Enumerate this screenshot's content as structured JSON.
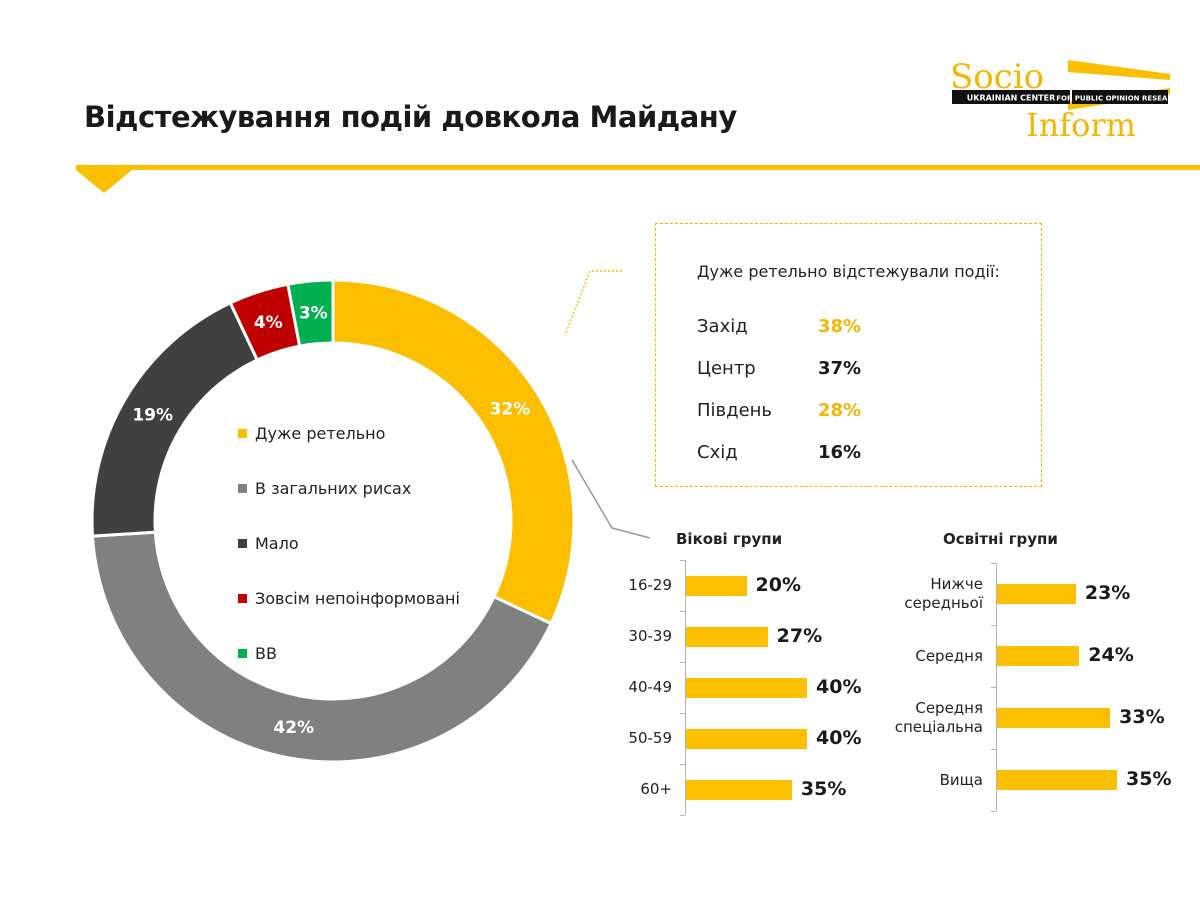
{
  "page": {
    "title": "Відстежування подій довкола Майдану"
  },
  "logo": {
    "word1": "Socio",
    "word2": "Inform",
    "tag1": "UKRAINIAN CENTER",
    "tag2": "FOR PUBLIC OPINION RESEARCH"
  },
  "colors": {
    "accent": "#fbbf00",
    "accent_text": "#f2b705",
    "gray": "#808080",
    "dark": "#404040",
    "red": "#c00000",
    "green": "#00b050"
  },
  "chart_data": [
    {
      "type": "pie",
      "hole": true,
      "categories": [
        "Дуже ретельно",
        "В загальних рисах",
        "Мало",
        "Зовсім непоінформовані",
        "ВВ"
      ],
      "values": [
        32,
        42,
        19,
        4,
        3
      ],
      "labels": [
        "32%",
        "42%",
        "19%",
        "4%",
        "3%"
      ],
      "colors": [
        "#fbbf00",
        "#808080",
        "#404040",
        "#c00000",
        "#00b050"
      ],
      "legend": "inside"
    },
    {
      "type": "table",
      "title": "Дуже ретельно відстежували події:",
      "rows": [
        {
          "name": "Захід",
          "value": "38%",
          "color": "#f2b705"
        },
        {
          "name": "Центр",
          "value": "37%",
          "color": "#1a1a1a"
        },
        {
          "name": "Південь",
          "value": "28%",
          "color": "#f2b705"
        },
        {
          "name": "Схід",
          "value": "16%",
          "color": "#1a1a1a"
        }
      ]
    },
    {
      "type": "bar",
      "orientation": "horizontal",
      "title": "Вікові групи",
      "categories": [
        "16-29",
        "30-39",
        "40-49",
        "50-59",
        "60+"
      ],
      "values": [
        20,
        27,
        40,
        40,
        35
      ],
      "labels": [
        "20%",
        "27%",
        "40%",
        "40%",
        "35%"
      ]
    },
    {
      "type": "bar",
      "orientation": "horizontal",
      "title": "Освітні групи",
      "categories": [
        [
          "Нижче",
          "середньої"
        ],
        [
          "Середня"
        ],
        [
          "Середня",
          "спеціальна"
        ],
        [
          "Вища"
        ]
      ],
      "values": [
        23,
        24,
        33,
        35
      ],
      "labels": [
        "23%",
        "24%",
        "33%",
        "35%"
      ]
    }
  ]
}
